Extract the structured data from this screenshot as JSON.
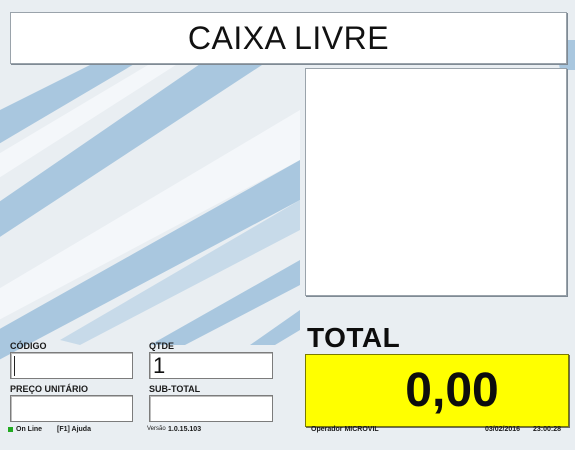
{
  "header": {
    "title": "CAIXA LIVRE"
  },
  "fields": {
    "codigo": {
      "label": "CÓDIGO",
      "value": ""
    },
    "qtde": {
      "label": "QTDE",
      "value": "1"
    },
    "preco_unitario": {
      "label": "PREÇO UNITÁRIO",
      "value": ""
    },
    "sub_total": {
      "label": "SUB-TOTAL",
      "value": ""
    }
  },
  "total": {
    "label": "TOTAL",
    "value": "0,00"
  },
  "status": {
    "connection": "On Line",
    "help": "[F1] Ajuda",
    "version_label": "Versão",
    "version": "1.0.15.103",
    "operator": "Operador MICROVIL",
    "date": "03/02/2016",
    "time": "23:00:28"
  },
  "colors": {
    "total_background": "#ffff00",
    "stripe": "#a9c7df",
    "online_led": "#22aa22"
  }
}
